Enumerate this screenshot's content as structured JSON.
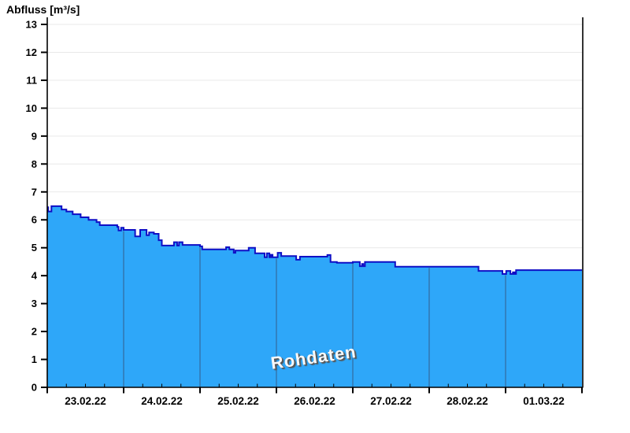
{
  "title": "Abfluss [m³/s]",
  "watermark": "Rohdaten",
  "chart_data": {
    "type": "area",
    "title": "Abfluss [m³/s]",
    "ylabel": "Abfluss [m³/s]",
    "xlabel": "",
    "ylim": [
      0,
      13
    ],
    "y_ticks": [
      0,
      1,
      2,
      3,
      4,
      5,
      6,
      7,
      8,
      9,
      10,
      11,
      12,
      13
    ],
    "x_tick_labels": [
      "23.02.22",
      "24.02.22",
      "25.02.22",
      "26.02.22",
      "27.02.22",
      "28.02.22",
      "01.03.22"
    ],
    "x_range_hours": 168,
    "hours_per_day": 24,
    "minor_tick_interval_hours": 6,
    "grid": "horizontal-only",
    "legend": "none",
    "annotations": [
      "Rohdaten"
    ],
    "series": [
      {
        "name": "Abfluss Rohdaten",
        "unit": "m³/s",
        "draw_style": "steps-post",
        "steps_hour_value": [
          [
            0,
            6.45
          ],
          [
            0.3,
            6.3
          ],
          [
            1.3,
            6.49
          ],
          [
            4.5,
            6.37
          ],
          [
            6,
            6.3
          ],
          [
            8,
            6.2
          ],
          [
            10.5,
            6.09
          ],
          [
            13,
            6.0
          ],
          [
            15.5,
            5.92
          ],
          [
            16.5,
            5.81
          ],
          [
            22,
            5.75
          ],
          [
            22.4,
            5.62
          ],
          [
            23.2,
            5.72
          ],
          [
            24,
            5.64
          ],
          [
            27.6,
            5.41
          ],
          [
            29.2,
            5.64
          ],
          [
            31.2,
            5.45
          ],
          [
            32,
            5.55
          ],
          [
            33.5,
            5.5
          ],
          [
            35,
            5.27
          ],
          [
            36,
            5.08
          ],
          [
            39.8,
            5.2
          ],
          [
            40.8,
            5.08
          ],
          [
            41.4,
            5.2
          ],
          [
            42.5,
            5.1
          ],
          [
            48,
            5.05
          ],
          [
            48.7,
            4.94
          ],
          [
            56.2,
            5.02
          ],
          [
            57.2,
            4.94
          ],
          [
            58.6,
            4.82
          ],
          [
            59.1,
            4.9
          ],
          [
            63.3,
            5.0
          ],
          [
            65.3,
            4.8
          ],
          [
            68.3,
            4.66
          ],
          [
            69.0,
            4.8
          ],
          [
            69.8,
            4.66
          ],
          [
            70.3,
            4.75
          ],
          [
            70.8,
            4.66
          ],
          [
            72.4,
            4.82
          ],
          [
            73.5,
            4.7
          ],
          [
            78.2,
            4.57
          ],
          [
            79.4,
            4.68
          ],
          [
            88,
            4.74
          ],
          [
            89,
            4.49
          ],
          [
            91,
            4.46
          ],
          [
            96,
            4.49
          ],
          [
            98.2,
            4.34
          ],
          [
            98.9,
            4.42
          ],
          [
            99.3,
            4.34
          ],
          [
            99.8,
            4.49
          ],
          [
            109.3,
            4.32
          ],
          [
            135.5,
            4.17
          ],
          [
            143,
            4.06
          ],
          [
            144.2,
            4.17
          ],
          [
            145.5,
            4.06
          ],
          [
            146.3,
            4.12
          ],
          [
            146.8,
            4.06
          ],
          [
            147.3,
            4.2
          ],
          [
            168,
            4.2
          ]
        ]
      }
    ],
    "colors": {
      "fill": "#2EA7F9",
      "line": "#0F0FC5",
      "grid": "#E9E9E9",
      "axis": "#000000",
      "tick_label": "#000000",
      "day_boundary_line": "#346A9E",
      "watermark_text": "#F8F8F8",
      "watermark_shadow": "#555555",
      "background": "#FFFFFF"
    }
  }
}
